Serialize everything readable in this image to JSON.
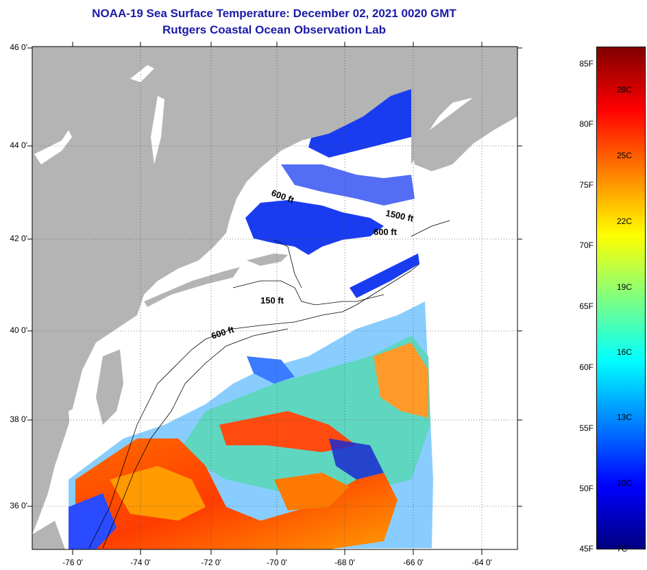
{
  "title": {
    "line1": "NOAA-19 Sea Surface Temperature:  December 02, 2021 0020 GMT",
    "line2": "Rutgers Coastal Ocean Observation Lab"
  },
  "axes": {
    "lat_labels": [
      "46 0'",
      "44 0'",
      "42 0'",
      "40 0'",
      "38 0'",
      "36 0'"
    ],
    "lon_labels": [
      "-76 0'",
      "-74 0'",
      "-72 0'",
      "-70 0'",
      "-68 0'",
      "-66 0'",
      "-64 0'"
    ]
  },
  "contours": {
    "labels": [
      "600 ft",
      "1500 ft",
      "600 ft",
      "150 ft",
      "600 ft"
    ]
  },
  "colorbar": {
    "fahrenheit": [
      "85F",
      "80F",
      "75F",
      "70F",
      "65F",
      "60F",
      "55F",
      "50F",
      "45F"
    ],
    "celsius": [
      "28C",
      "25C",
      "22C",
      "19C",
      "16C",
      "13C",
      "10C",
      "7C"
    ],
    "colors": [
      "#800000",
      "#ff0000",
      "#ff8000",
      "#ffff00",
      "#80ff80",
      "#00ffff",
      "#0080ff",
      "#0000ff",
      "#000080"
    ]
  },
  "colors": {
    "land": "#b4b4b4",
    "cloud_nodata": "#ffffff",
    "title": "#1a1aa8"
  }
}
